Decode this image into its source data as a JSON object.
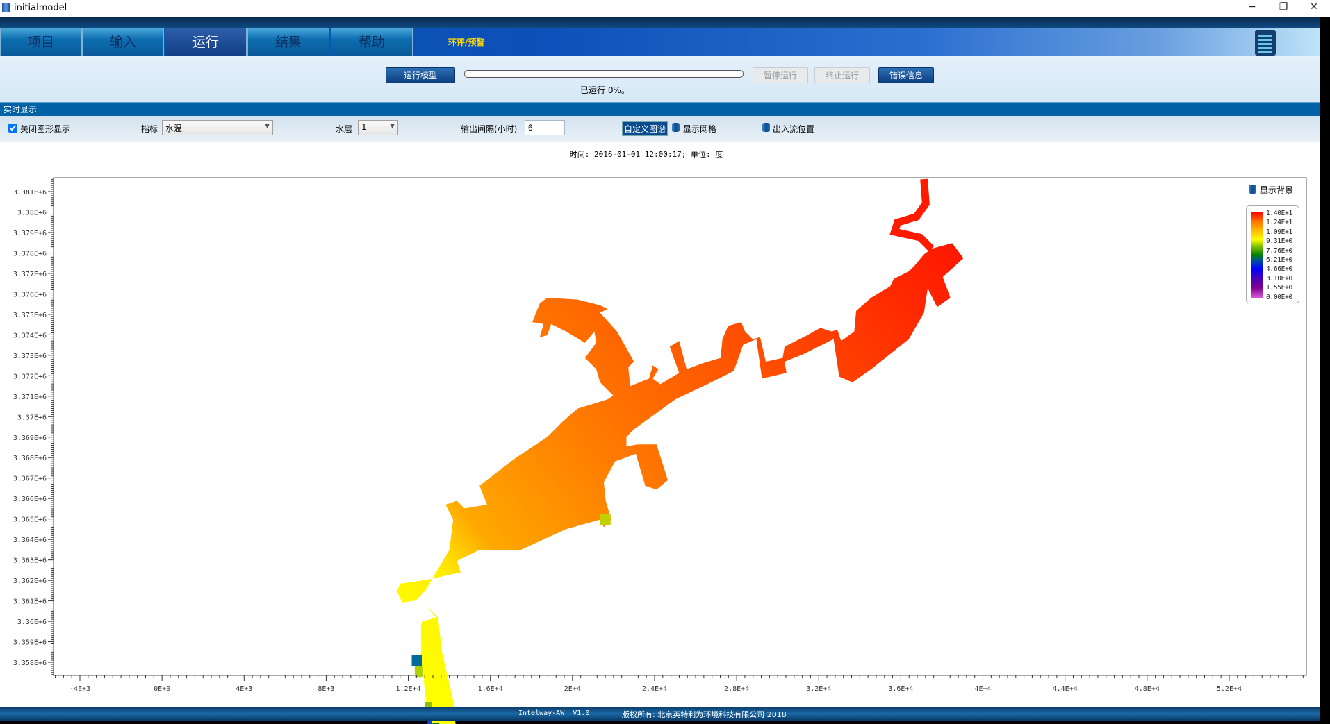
{
  "window": {
    "title": "initialmodel",
    "controls": [
      "−",
      "❐",
      "✕"
    ]
  },
  "tabs": [
    {
      "label": "项目"
    },
    {
      "label": "输入"
    },
    {
      "label": "运行",
      "active": true
    },
    {
      "label": "结果"
    },
    {
      "label": "帮助"
    }
  ],
  "warn_label": "环评/预警",
  "run": {
    "run_model": "运行模型",
    "progress_percent": 0,
    "ran_label": "已运行 0%。",
    "pause": "暂停运行",
    "stop": "终止运行",
    "errors": "错误信息"
  },
  "section_title": "实时显示",
  "toolbar": {
    "close_display": "关闭图形显示",
    "close_display_checked": true,
    "indicator_label": "指标",
    "indicator_value": "水温",
    "layer_label": "水层",
    "layer_value": "1",
    "interval_label": "输出间隔(小时)",
    "interval_value": "6",
    "custom_palette": "自定义图谱",
    "show_grid": "显示网格",
    "inout_positions": "出入流位置"
  },
  "time_label": "时间: 2016-01-01 12:00:17; 单位: 度",
  "show_background": "显示背景",
  "colors": {
    "accent": "#0062a6",
    "high": "#ff0000",
    "low": "#e060e0"
  },
  "chart_data": {
    "type": "heatmap",
    "x_ticks": [
      "-4E+3",
      "0E+0",
      "4E+3",
      "8E+3",
      "1.2E+4",
      "1.6E+4",
      "2E+4",
      "2.4E+4",
      "2.8E+4",
      "3.2E+4",
      "3.6E+4",
      "4E+4",
      "4.4E+4",
      "4.8E+4",
      "5.2E+4"
    ],
    "x_tick_values": [
      -4000,
      0,
      4000,
      8000,
      12000,
      16000,
      20000,
      24000,
      28000,
      32000,
      36000,
      40000,
      44000,
      48000,
      52000
    ],
    "y_ticks": [
      "3.381E+6",
      "3.38E+6",
      "3.379E+6",
      "3.378E+6",
      "3.377E+6",
      "3.376E+6",
      "3.375E+6",
      "3.374E+6",
      "3.373E+6",
      "3.372E+6",
      "3.371E+6",
      "3.37E+6",
      "3.369E+6",
      "3.368E+6",
      "3.367E+6",
      "3.366E+6",
      "3.365E+6",
      "3.364E+6",
      "3.363E+6",
      "3.362E+6",
      "3.361E+6",
      "3.36E+6",
      "3.359E+6",
      "3.358E+6"
    ],
    "y_tick_values": [
      3381000,
      3380000,
      3379000,
      3378000,
      3377000,
      3376000,
      3375000,
      3374000,
      3373000,
      3372000,
      3371000,
      3370000,
      3369000,
      3368000,
      3367000,
      3366000,
      3365000,
      3364000,
      3363000,
      3362000,
      3361000,
      3360000,
      3359000,
      3358000
    ],
    "legend": [
      "1.40E+1",
      "1.24E+1",
      "1.09E+1",
      "9.31E+0",
      "7.76E+0",
      "6.21E+0",
      "4.66E+0",
      "3.10E+0",
      "1.55E+0",
      "0.00E+0"
    ],
    "value_range": [
      0,
      14
    ]
  },
  "footer": {
    "version": "Intelway-AW  V1.0",
    "copyright": "版权所有: 北京英特利为环境科技有限公司 2018"
  }
}
